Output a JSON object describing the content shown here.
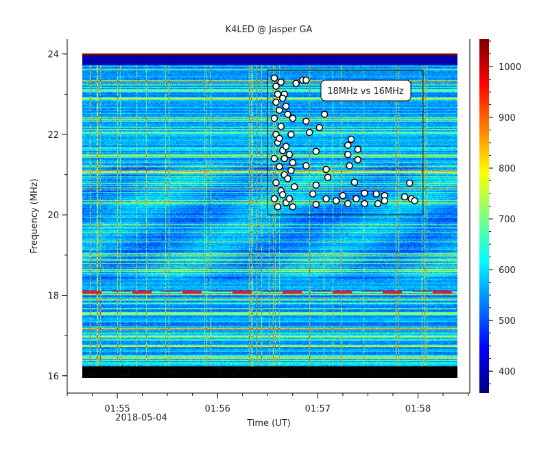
{
  "chart_data": {
    "type": "heatmap",
    "title": "K4LED @ Jasper GA",
    "xlabel": "Time (UT)",
    "ylabel": "Frequency (MHz)",
    "x_date_label": "2018-05-04",
    "xlim": [
      "01:54:30",
      "01:58:31"
    ],
    "ylim": [
      15.57,
      24.37
    ],
    "data_extent": {
      "x": [
        "01:54:39",
        "01:58:14"
      ],
      "y": [
        16.0,
        24.0
      ]
    },
    "x_ticks": [
      "01:55",
      "01:56",
      "01:57",
      "01:58"
    ],
    "x_minor_tick_seconds": 15,
    "y_ticks": [
      16,
      18,
      20,
      22,
      24
    ],
    "y_minor_tick_step": 1,
    "colormap": "jet",
    "colorbar": {
      "range": [
        357,
        1054
      ],
      "ticks": [
        400,
        500,
        600,
        700,
        800,
        900,
        1000
      ]
    },
    "grid": false,
    "overlay": {
      "type": "scatter",
      "label": "18MHz vs 16MHz",
      "marker_color": "#ffffff",
      "marker_edge": "#000000",
      "box": {
        "x": [
          "01:56:30",
          "01:58:03"
        ],
        "y": [
          20.0,
          23.6
        ]
      },
      "points": [
        [
          "01:56:34",
          23.4
        ],
        [
          "01:56:35",
          23.2
        ],
        [
          "01:56:36",
          23.0
        ],
        [
          "01:56:35",
          22.8
        ],
        [
          "01:56:37",
          22.6
        ],
        [
          "01:56:34",
          22.4
        ],
        [
          "01:56:38",
          22.2
        ],
        [
          "01:56:35",
          22.0
        ],
        [
          "01:56:36",
          21.8
        ],
        [
          "01:56:39",
          21.6
        ],
        [
          "01:56:34",
          21.4
        ],
        [
          "01:56:37",
          21.2
        ],
        [
          "01:56:40",
          21.0
        ],
        [
          "01:56:35",
          20.8
        ],
        [
          "01:56:38",
          20.6
        ],
        [
          "01:56:34",
          20.4
        ],
        [
          "01:56:36",
          20.2
        ],
        [
          "01:56:41",
          20.3
        ],
        [
          "01:56:42",
          20.9
        ],
        [
          "01:56:43",
          21.5
        ],
        [
          "01:56:44",
          22.0
        ],
        [
          "01:56:42",
          22.5
        ],
        [
          "01:56:40",
          23.0
        ],
        [
          "01:56:45",
          21.3
        ],
        [
          "01:56:46",
          20.7
        ],
        [
          "01:56:38",
          23.3
        ],
        [
          "01:56:39",
          22.9
        ],
        [
          "01:56:41",
          22.7
        ],
        [
          "01:56:37",
          21.9
        ],
        [
          "01:56:41",
          21.7
        ],
        [
          "01:56:44",
          21.1
        ],
        [
          "01:56:39",
          20.5
        ],
        [
          "01:56:43",
          20.4
        ],
        [
          "01:56:45",
          20.2
        ],
        [
          "01:56:40",
          21.4
        ],
        [
          "01:56:47",
          23.27
        ],
        [
          "01:56:51",
          23.35
        ],
        [
          "01:56:53",
          23.35
        ],
        [
          "01:57:04",
          22.5
        ],
        [
          "01:56:45",
          22.4
        ],
        [
          "01:56:53",
          22.33
        ],
        [
          "01:57:01",
          22.17
        ],
        [
          "01:56:55",
          22.05
        ],
        [
          "01:56:59",
          21.58
        ],
        [
          "01:56:53",
          21.22
        ],
        [
          "01:57:05",
          21.13
        ],
        [
          "01:57:06",
          20.93
        ],
        [
          "01:56:59",
          20.74
        ],
        [
          "01:57:20",
          21.88
        ],
        [
          "01:57:18",
          21.73
        ],
        [
          "01:57:24",
          21.63
        ],
        [
          "01:57:18",
          21.5
        ],
        [
          "01:57:24",
          21.37
        ],
        [
          "01:57:19",
          21.22
        ],
        [
          "01:57:22",
          20.81
        ],
        [
          "01:57:55",
          20.79
        ],
        [
          "01:56:57",
          20.52
        ],
        [
          "01:56:59",
          20.26
        ],
        [
          "01:57:05",
          20.4
        ],
        [
          "01:57:11",
          20.35
        ],
        [
          "01:57:15",
          20.48
        ],
        [
          "01:57:18",
          20.28
        ],
        [
          "01:57:23",
          20.4
        ],
        [
          "01:57:28",
          20.54
        ],
        [
          "01:57:28",
          20.28
        ],
        [
          "01:57:35",
          20.52
        ],
        [
          "01:57:36",
          20.28
        ],
        [
          "01:57:40",
          20.48
        ],
        [
          "01:57:40",
          20.35
        ],
        [
          "01:57:52",
          20.45
        ],
        [
          "01:57:56",
          20.4
        ],
        [
          "01:57:58",
          20.35
        ]
      ]
    }
  }
}
